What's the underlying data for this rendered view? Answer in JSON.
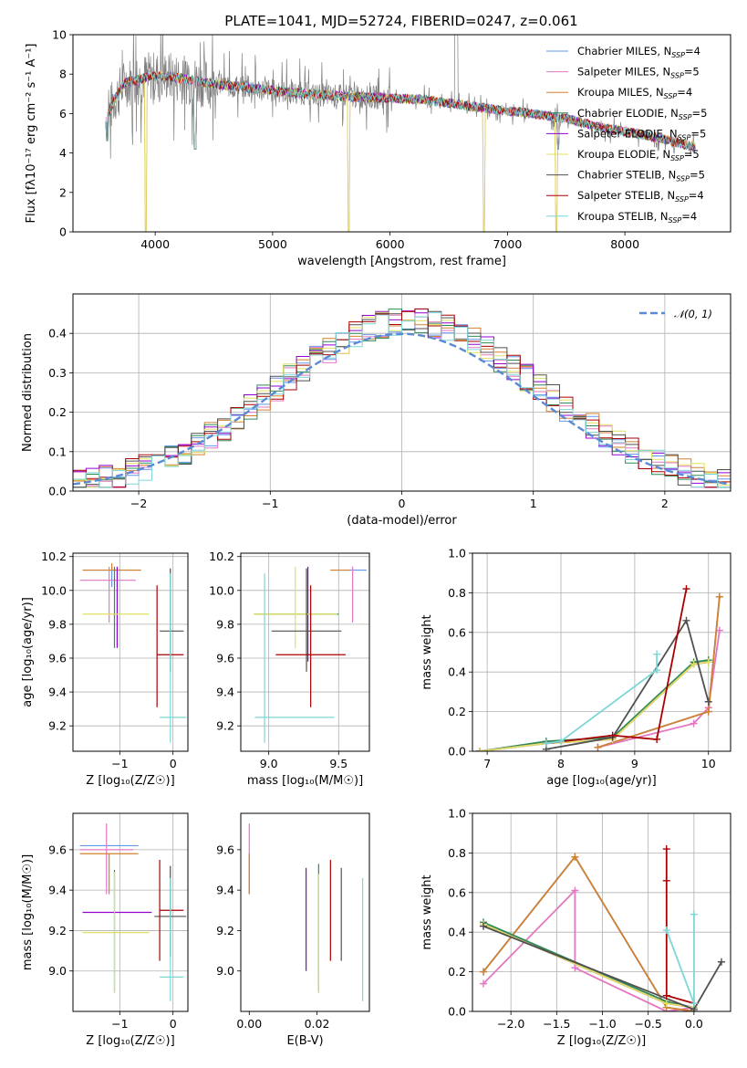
{
  "figure": {
    "title": "PLATE=1041, MJD=52724, FIBERID=0247, z=0.061"
  },
  "colors": {
    "Chabrier MILES": "#6495ed",
    "Salpeter MILES": "#e377c2",
    "Kroupa MILES": "#d2812f",
    "Chabrier ELODIE": "#2e8b57",
    "Salpeter ELODIE": "#9400d3",
    "Kroupa ELODIE": "#e0e060",
    "Chabrier STELIB": "#505050",
    "Salpeter STELIB": "#aa0000",
    "Kroupa STELIB": "#7ed6d6",
    "data": "#808080",
    "normal": "#5a8ad6"
  },
  "chart_data": [
    {
      "id": "spectrum",
      "type": "line",
      "title": "PLATE=1041, MJD=52724, FIBERID=0247, z=0.061",
      "xlabel": "wavelength [Angstrom, rest frame]",
      "ylabel": "Flux [fλ10⁻¹⁷ erg cm⁻² s⁻¹ A⁻¹]",
      "xlim": [
        3300,
        8900
      ],
      "ylim": [
        0,
        10
      ],
      "xticks": [
        "4000",
        "5000",
        "6000",
        "7000",
        "8000"
      ],
      "yticks": [
        "0",
        "2",
        "4",
        "6",
        "8",
        "10"
      ],
      "grid": false,
      "legend_position": "top-right",
      "legend": [
        {
          "name": "Chabrier MILES",
          "label": "Chabrier MILES, N",
          "sub": "SSP",
          "tail": "=4"
        },
        {
          "name": "Salpeter MILES",
          "label": "Salpeter MILES, N",
          "sub": "SSP",
          "tail": "=5"
        },
        {
          "name": "Kroupa MILES",
          "label": "Kroupa MILES, N",
          "sub": "SSP",
          "tail": "=4"
        },
        {
          "name": "Chabrier ELODIE",
          "label": "Chabrier ELODIE, N",
          "sub": "SSP",
          "tail": "=5"
        },
        {
          "name": "Salpeter ELODIE",
          "label": "Salpeter ELODIE, N",
          "sub": "SSP",
          "tail": "=5"
        },
        {
          "name": "Kroupa ELODIE",
          "label": "Kroupa ELODIE, N",
          "sub": "SSP",
          "tail": "=5"
        },
        {
          "name": "Chabrier STELIB",
          "label": "Chabrier STELIB, N",
          "sub": "SSP",
          "tail": "=5"
        },
        {
          "name": "Salpeter STELIB",
          "label": "Salpeter STELIB, N",
          "sub": "SSP",
          "tail": "=4"
        },
        {
          "name": "Kroupa STELIB",
          "label": "Kroupa STELIB, N",
          "sub": "SSP",
          "tail": "=4"
        }
      ],
      "continuum": {
        "x": [
          3580,
          3650,
          3750,
          3850,
          3950,
          4100,
          4300,
          4500,
          4800,
          5100,
          5500,
          5900,
          6300,
          6600,
          6900,
          7200,
          7500,
          7800,
          8100,
          8400,
          8600
        ],
        "y": [
          5.6,
          6.7,
          7.6,
          7.7,
          7.9,
          7.9,
          7.7,
          7.5,
          7.3,
          7.1,
          6.9,
          6.8,
          6.7,
          6.45,
          6.2,
          6.0,
          5.75,
          5.3,
          5.0,
          4.6,
          4.3
        ]
      },
      "dips": [
        {
          "x": 3590,
          "y": 4.6
        },
        {
          "x": 3920,
          "y": 0.0
        },
        {
          "x": 4340,
          "y": 4.2
        },
        {
          "x": 5650,
          "y": 0.0
        },
        {
          "x": 6800,
          "y": 0.0
        },
        {
          "x": 7420,
          "y": 0.0
        },
        {
          "x": 7430,
          "y": 4.2
        }
      ]
    },
    {
      "id": "residuals",
      "type": "histogram",
      "xlabel": "(data-model)/error",
      "ylabel": "Normed distribution",
      "xlim": [
        -2.5,
        2.5
      ],
      "ylim": [
        0,
        0.5
      ],
      "xticks": [
        "−2",
        "−1",
        "0",
        "1",
        "2"
      ],
      "yticks": [
        "0.0",
        "0.1",
        "0.2",
        "0.3",
        "0.4"
      ],
      "grid": true,
      "legend_position": "top-right",
      "legend": [
        {
          "name": "normal",
          "label": "𝒩(0, 1)"
        }
      ],
      "bin_width": 0.1
    },
    {
      "id": "age-vs-Z",
      "type": "errorbar",
      "xlabel": "Z [log₁₀(Z/Z☉)]",
      "ylabel": "age  [log₁₀(age/yr)]",
      "xlim": [
        -1.88,
        0.28
      ],
      "ylim": [
        9.05,
        10.22
      ],
      "xticks": [
        "−1",
        "0"
      ],
      "yticks": [
        "9.2",
        "9.4",
        "9.6",
        "9.8",
        "10.0",
        "10.2"
      ],
      "grid": true,
      "points": [
        {
          "series": "Chabrier MILES",
          "x": -1.15,
          "xerr": [
            0.55,
            0.55
          ],
          "y": 10.12,
          "yerr": [
            0.1,
            0.02
          ]
        },
        {
          "series": "Salpeter MILES",
          "x": -1.2,
          "xerr": [
            0.55,
            0.5
          ],
          "y": 10.06,
          "yerr": [
            0.25,
            0.08
          ]
        },
        {
          "series": "Kroupa MILES",
          "x": -1.15,
          "xerr": [
            0.55,
            0.55
          ],
          "y": 10.12,
          "yerr": [
            0.0,
            0.04
          ]
        },
        {
          "series": "Chabrier ELODIE",
          "x": -1.1,
          "xerr": [
            0.0,
            0.0
          ],
          "y": 9.86,
          "yerr": [
            0.2,
            0.28
          ]
        },
        {
          "series": "Salpeter ELODIE",
          "x": -1.05,
          "xerr": [
            0.0,
            0.0
          ],
          "y": 9.86,
          "yerr": [
            0.2,
            0.28
          ]
        },
        {
          "series": "Kroupa ELODIE",
          "x": -1.1,
          "xerr": [
            0.6,
            0.65
          ],
          "y": 9.86,
          "yerr": [
            0.0,
            0.0
          ]
        },
        {
          "series": "Chabrier STELIB",
          "x": -0.05,
          "xerr": [
            0.2,
            0.25
          ],
          "y": 9.76,
          "yerr": [
            0.24,
            0.37
          ]
        },
        {
          "series": "Salpeter STELIB",
          "x": -0.3,
          "xerr": [
            0.0,
            0.5
          ],
          "y": 9.62,
          "yerr": [
            0.31,
            0.41
          ]
        },
        {
          "series": "Kroupa STELIB",
          "x": -0.05,
          "xerr": [
            0.2,
            0.3
          ],
          "y": 9.25,
          "yerr": [
            0.15,
            0.85
          ]
        }
      ]
    },
    {
      "id": "age-vs-mass",
      "type": "errorbar",
      "xlabel": "mass [log₁₀(M/M☉)]",
      "ylabel": "",
      "xlim": [
        8.8,
        9.72
      ],
      "ylim": [
        9.05,
        10.22
      ],
      "xticks": [
        "9.0",
        "9.5"
      ],
      "yticks": [
        "9.2",
        "9.4",
        "9.6",
        "9.8",
        "10.0",
        "10.2"
      ],
      "grid": true,
      "points": [
        {
          "series": "Chabrier MILES",
          "x": 9.6,
          "xerr": [
            0.15,
            0.1
          ],
          "y": 10.12,
          "yerr": [
            0.0,
            0.0
          ]
        },
        {
          "series": "Salpeter MILES",
          "x": 9.6,
          "xerr": [
            0.0,
            0.0
          ],
          "y": 10.06,
          "yerr": [
            0.25,
            0.08
          ]
        },
        {
          "series": "Kroupa MILES",
          "x": 9.58,
          "xerr": [
            0.14,
            0.0
          ],
          "y": 10.12,
          "yerr": [
            0.0,
            0.0
          ]
        },
        {
          "series": "Chabrier ELODIE",
          "x": 9.2,
          "xerr": [
            0.3,
            0.3
          ],
          "y": 9.86,
          "yerr": [
            0.0,
            0.0
          ]
        },
        {
          "series": "Salpeter ELODIE",
          "x": 9.28,
          "xerr": [
            0.0,
            0.0
          ],
          "y": 9.86,
          "yerr": [
            0.28,
            0.28
          ]
        },
        {
          "series": "Kroupa ELODIE",
          "x": 9.19,
          "xerr": [
            0.3,
            0.3
          ],
          "y": 9.86,
          "yerr": [
            0.2,
            0.28
          ]
        },
        {
          "series": "Chabrier STELIB",
          "x": 9.27,
          "xerr": [
            0.25,
            0.25
          ],
          "y": 9.76,
          "yerr": [
            0.24,
            0.37
          ]
        },
        {
          "series": "Salpeter STELIB",
          "x": 9.3,
          "xerr": [
            0.25,
            0.25
          ],
          "y": 9.62,
          "yerr": [
            0.31,
            0.41
          ]
        },
        {
          "series": "Kroupa STELIB",
          "x": 8.97,
          "xerr": [
            0.07,
            0.5
          ],
          "y": 9.25,
          "yerr": [
            0.15,
            0.85
          ]
        }
      ]
    },
    {
      "id": "massweight-vs-age",
      "type": "line",
      "xlabel": "age  [log₁₀(age/yr)]",
      "ylabel": "mass weight",
      "xlim": [
        6.8,
        10.3
      ],
      "ylim": [
        0,
        1
      ],
      "xticks": [
        "7",
        "8",
        "9",
        "10"
      ],
      "yticks": [
        "0.0",
        "0.2",
        "0.4",
        "0.6",
        "0.8",
        "1.0"
      ],
      "grid": true,
      "series": [
        {
          "name": "Chabrier MILES",
          "x": [
            8.5,
            10.0,
            10.15
          ],
          "y": [
            0.02,
            0.2,
            0.78
          ]
        },
        {
          "name": "Salpeter MILES",
          "x": [
            8.5,
            9.8,
            10.0,
            10.15
          ],
          "y": [
            0.02,
            0.14,
            0.22,
            0.61
          ]
        },
        {
          "name": "Kroupa MILES",
          "x": [
            8.5,
            10.0,
            10.15
          ],
          "y": [
            0.02,
            0.2,
            0.78
          ]
        },
        {
          "name": "Chabrier ELODIE",
          "x": [
            6.9,
            7.8,
            8.7,
            9.8,
            10.0
          ],
          "y": [
            0.0,
            0.05,
            0.07,
            0.45,
            0.46
          ]
        },
        {
          "name": "Salpeter ELODIE",
          "x": [
            6.9,
            7.8,
            8.7,
            9.8,
            10.0
          ],
          "y": [
            0.0,
            0.04,
            0.06,
            0.44,
            0.45
          ]
        },
        {
          "name": "Kroupa ELODIE",
          "x": [
            6.9,
            7.8,
            8.7,
            9.8,
            10.0
          ],
          "y": [
            0.0,
            0.04,
            0.06,
            0.44,
            0.45
          ]
        },
        {
          "name": "Chabrier STELIB",
          "x": [
            7.8,
            8.7,
            9.7,
            10.0
          ],
          "y": [
            0.01,
            0.07,
            0.66,
            0.25
          ]
        },
        {
          "name": "Salpeter STELIB",
          "x": [
            7.8,
            8.7,
            9.3,
            9.7
          ],
          "y": [
            0.04,
            0.08,
            0.06,
            0.82
          ]
        },
        {
          "name": "Kroupa STELIB",
          "x": [
            7.8,
            8.0,
            9.3,
            9.3
          ],
          "y": [
            0.04,
            0.05,
            0.41,
            0.49
          ]
        }
      ]
    },
    {
      "id": "mass-vs-Z",
      "type": "errorbar",
      "xlabel": "Z [log₁₀(Z/Z☉)]",
      "ylabel": "mass [log₁₀(M/M☉)]",
      "xlim": [
        -1.88,
        0.28
      ],
      "ylim": [
        8.8,
        9.78
      ],
      "xticks": [
        "−1",
        "0"
      ],
      "yticks": [
        "9.0",
        "9.2",
        "9.4",
        "9.6"
      ],
      "grid": true,
      "points": [
        {
          "series": "Chabrier MILES",
          "x": -1.2,
          "xerr": [
            0.55,
            0.55
          ],
          "y": 9.62,
          "yerr": [
            0.0,
            0.0
          ]
        },
        {
          "series": "Salpeter MILES",
          "x": -1.25,
          "xerr": [
            0.5,
            0.5
          ],
          "y": 9.6,
          "yerr": [
            0.22,
            0.13
          ]
        },
        {
          "series": "Kroupa MILES",
          "x": -1.2,
          "xerr": [
            0.55,
            0.55
          ],
          "y": 9.58,
          "yerr": [
            0.2,
            0.0
          ]
        },
        {
          "series": "Chabrier ELODIE",
          "x": -1.1,
          "xerr": [
            0.0,
            0.0
          ],
          "y": 9.2,
          "yerr": [
            0.3,
            0.3
          ]
        },
        {
          "series": "Salpeter ELODIE",
          "x": -1.05,
          "xerr": [
            0.65,
            0.65
          ],
          "y": 9.29,
          "yerr": [
            0.0,
            0.0
          ]
        },
        {
          "series": "Kroupa ELODIE",
          "x": -1.1,
          "xerr": [
            0.6,
            0.65
          ],
          "y": 9.19,
          "yerr": [
            0.3,
            0.3
          ]
        },
        {
          "series": "Chabrier STELIB",
          "x": -0.05,
          "xerr": [
            0.3,
            0.3
          ],
          "y": 9.27,
          "yerr": [
            0.2,
            0.25
          ]
        },
        {
          "series": "Salpeter STELIB",
          "x": -0.25,
          "xerr": [
            0.0,
            0.45
          ],
          "y": 9.3,
          "yerr": [
            0.25,
            0.25
          ]
        },
        {
          "series": "Kroupa STELIB",
          "x": -0.05,
          "xerr": [
            0.2,
            0.25
          ],
          "y": 8.97,
          "yerr": [
            0.12,
            0.49
          ]
        }
      ]
    },
    {
      "id": "mass-vs-ebv",
      "type": "errorbar",
      "xlabel": "E(B-V)",
      "ylabel": "",
      "xlim": [
        -0.0025,
        0.0355
      ],
      "ylim": [
        8.8,
        9.78
      ],
      "xticks": [
        "0.00",
        "0.02"
      ],
      "yticks": [
        "9.0",
        "9.2",
        "9.4",
        "9.6"
      ],
      "grid": false,
      "points": [
        {
          "series": "Chabrier MILES",
          "x": 0.0,
          "xerr": [
            0.0,
            0.0
          ],
          "y": 9.62,
          "yerr": [
            0.0,
            0.0
          ]
        },
        {
          "series": "Salpeter MILES",
          "x": 0.0,
          "xerr": [
            0.0,
            0.0
          ],
          "y": 9.6,
          "yerr": [
            0.22,
            0.13
          ]
        },
        {
          "series": "Kroupa MILES",
          "x": 0.0,
          "xerr": [
            0.0,
            0.0
          ],
          "y": 9.58,
          "yerr": [
            0.2,
            0.0
          ]
        },
        {
          "series": "Chabrier ELODIE",
          "x": 0.0205,
          "xerr": [
            0.0,
            0.0
          ],
          "y": 9.2,
          "yerr": [
            0.3,
            0.33
          ]
        },
        {
          "series": "Salpeter ELODIE",
          "x": 0.0168,
          "xerr": [
            0.0,
            0.0
          ],
          "y": 9.29,
          "yerr": [
            0.29,
            0.22
          ]
        },
        {
          "series": "Kroupa ELODIE",
          "x": 0.0205,
          "xerr": [
            0.0,
            0.0
          ],
          "y": 9.19,
          "yerr": [
            0.3,
            0.29
          ]
        },
        {
          "series": "Chabrier STELIB",
          "x": 0.0272,
          "xerr": [
            0.0,
            0.0
          ],
          "y": 9.27,
          "yerr": [
            0.22,
            0.24
          ]
        },
        {
          "series": "Salpeter STELIB",
          "x": 0.024,
          "xerr": [
            0.0,
            0.0
          ],
          "y": 9.3,
          "yerr": [
            0.25,
            0.25
          ]
        },
        {
          "series": "Kroupa STELIB",
          "x": 0.0335,
          "xerr": [
            0.0,
            0.0
          ],
          "y": 8.97,
          "yerr": [
            0.12,
            0.49
          ]
        }
      ]
    },
    {
      "id": "massweight-vs-Z",
      "type": "line",
      "xlabel": "Z [log₁₀(Z/Z☉)]",
      "ylabel": "mass weight",
      "xlim": [
        -2.42,
        0.4
      ],
      "ylim": [
        0,
        1
      ],
      "xticks": [
        "−2.0",
        "−1.5",
        "−1.0",
        "−0.5",
        "0.0"
      ],
      "yticks": [
        "0.0",
        "0.2",
        "0.4",
        "0.6",
        "0.8",
        "1.0"
      ],
      "grid": true,
      "series": [
        {
          "name": "Chabrier MILES",
          "x": [
            -2.3,
            -1.3,
            -0.3,
            0.0
          ],
          "y": [
            0.2,
            0.78,
            0.02,
            0.0
          ]
        },
        {
          "name": "Salpeter MILES",
          "x": [
            -2.3,
            -1.3,
            -1.3,
            -0.3,
            0.0
          ],
          "y": [
            0.14,
            0.61,
            0.22,
            0.0,
            0.02
          ]
        },
        {
          "name": "Kroupa MILES",
          "x": [
            -2.3,
            -1.3,
            -0.3,
            0.0
          ],
          "y": [
            0.2,
            0.78,
            0.02,
            0.0
          ]
        },
        {
          "name": "Chabrier ELODIE",
          "x": [
            -2.3,
            -0.3,
            0.0
          ],
          "y": [
            0.45,
            0.05,
            0.02
          ]
        },
        {
          "name": "Salpeter ELODIE",
          "x": [
            -2.3,
            -0.3,
            0.0
          ],
          "y": [
            0.44,
            0.04,
            0.02
          ]
        },
        {
          "name": "Kroupa ELODIE",
          "x": [
            -2.3,
            -0.3,
            0.0
          ],
          "y": [
            0.44,
            0.04,
            0.02
          ]
        },
        {
          "name": "Chabrier STELIB",
          "x": [
            -2.3,
            0.0,
            0.3
          ],
          "y": [
            0.43,
            0.01,
            0.25
          ]
        },
        {
          "name": "Salpeter STELIB",
          "x": [
            -0.3,
            -0.3,
            -0.3,
            0.0
          ],
          "y": [
            0.82,
            0.66,
            0.08,
            0.04
          ]
        },
        {
          "name": "Kroupa STELIB",
          "x": [
            -0.3,
            0.0,
            0.0
          ],
          "y": [
            0.41,
            0.04,
            0.49
          ]
        }
      ]
    }
  ]
}
